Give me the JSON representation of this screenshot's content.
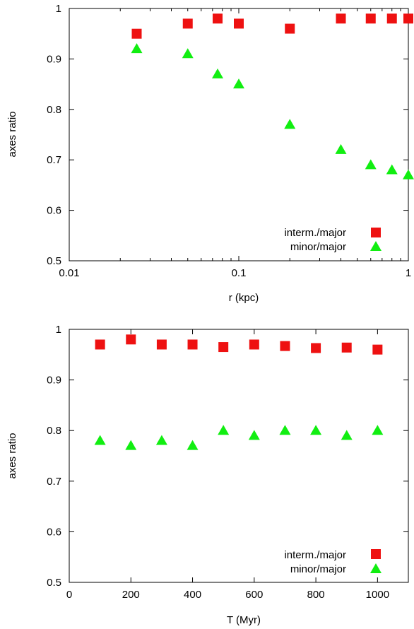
{
  "chart_data": [
    {
      "type": "scatter",
      "title": "",
      "xlabel": "r (kpc)",
      "ylabel": "axes ratio",
      "xscale": "log",
      "xlim": [
        0.01,
        1
      ],
      "ylim": [
        0.5,
        1
      ],
      "xticks": [
        0.01,
        0.1,
        1
      ],
      "xtick_labels": [
        "0.01",
        "0.1",
        "1"
      ],
      "yticks": [
        0.5,
        0.6,
        0.7,
        0.8,
        0.9,
        1
      ],
      "ytick_labels": [
        "0.5",
        "0.6",
        "0.7",
        "0.8",
        "0.9",
        "1"
      ],
      "legend_position": "bottom-right",
      "series": [
        {
          "name": "interm./major",
          "marker": "square",
          "color": "#ee1111",
          "x": [
            0.025,
            0.05,
            0.075,
            0.1,
            0.2,
            0.4,
            0.6,
            0.8,
            1.0
          ],
          "y": [
            0.95,
            0.97,
            0.98,
            0.97,
            0.96,
            0.98,
            0.98,
            0.98,
            0.98
          ]
        },
        {
          "name": "minor/major",
          "marker": "triangle",
          "color": "#11ee11",
          "x": [
            0.025,
            0.05,
            0.075,
            0.1,
            0.2,
            0.4,
            0.6,
            0.8,
            1.0
          ],
          "y": [
            0.92,
            0.91,
            0.87,
            0.85,
            0.77,
            0.72,
            0.69,
            0.68,
            0.67
          ]
        }
      ]
    },
    {
      "type": "scatter",
      "title": "",
      "xlabel": "T (Myr)",
      "ylabel": "axes ratio",
      "xscale": "linear",
      "xlim": [
        0,
        1100
      ],
      "ylim": [
        0.5,
        1
      ],
      "xticks": [
        0,
        200,
        400,
        600,
        800,
        1000
      ],
      "xtick_labels": [
        "0",
        "200",
        "400",
        "600",
        "800",
        "1000"
      ],
      "yticks": [
        0.5,
        0.6,
        0.7,
        0.8,
        0.9,
        1
      ],
      "ytick_labels": [
        "0.5",
        "0.6",
        "0.7",
        "0.8",
        "0.9",
        "1"
      ],
      "legend_position": "bottom-right",
      "series": [
        {
          "name": "interm./major",
          "marker": "square",
          "color": "#ee1111",
          "x": [
            100,
            200,
            300,
            400,
            500,
            600,
            700,
            800,
            900,
            1000
          ],
          "y": [
            0.97,
            0.98,
            0.97,
            0.97,
            0.965,
            0.97,
            0.967,
            0.963,
            0.964,
            0.96
          ]
        },
        {
          "name": "minor/major",
          "marker": "triangle",
          "color": "#11ee11",
          "x": [
            100,
            200,
            300,
            400,
            500,
            600,
            700,
            800,
            900,
            1000
          ],
          "y": [
            0.78,
            0.77,
            0.78,
            0.77,
            0.8,
            0.79,
            0.8,
            0.8,
            0.79,
            0.8
          ]
        }
      ]
    }
  ]
}
